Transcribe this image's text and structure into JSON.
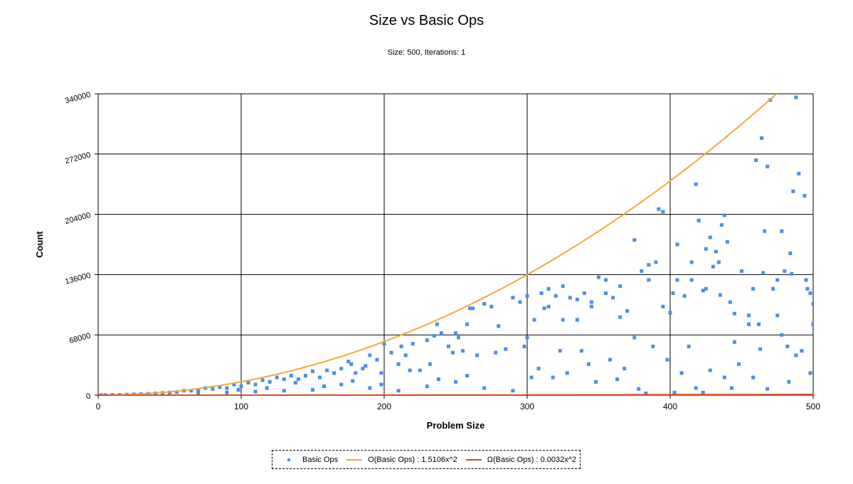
{
  "title": "Size vs Basic Ops",
  "subtitle": "Size: 500, Iterations: 1",
  "chart_data": {
    "type": "scatter",
    "title": "Size vs Basic Ops",
    "subtitle": "Size: 500, Iterations: 1",
    "xlabel": "Problem Size",
    "ylabel": "Count",
    "xlim": [
      0,
      500
    ],
    "ylim": [
      0,
      340000
    ],
    "xticks": [
      "0",
      "100",
      "200",
      "300",
      "400",
      "500"
    ],
    "yticks": [
      "0",
      "68000",
      "136000",
      "204000",
      "272000",
      "340000"
    ],
    "grid": true,
    "legend_position": "bottom-center",
    "series": [
      {
        "name": "Basic Ops",
        "kind": "points",
        "color": "#4a8fe7",
        "points": [
          [
            300,
            112000
          ],
          [
            310,
            115000
          ],
          [
            312,
            98000
          ],
          [
            315,
            100000
          ],
          [
            320,
            112000
          ],
          [
            325,
            85000
          ],
          [
            330,
            110000
          ],
          [
            335,
            108000
          ],
          [
            340,
            115000
          ],
          [
            345,
            105000
          ],
          [
            350,
            133000
          ],
          [
            355,
            130000
          ],
          [
            360,
            110000
          ],
          [
            365,
            88000
          ],
          [
            370,
            95000
          ],
          [
            375,
            65000
          ],
          [
            380,
            140000
          ],
          [
            385,
            130000
          ],
          [
            390,
            150000
          ],
          [
            392,
            210000
          ],
          [
            395,
            207000
          ],
          [
            400,
            93000
          ],
          [
            402,
            115000
          ],
          [
            405,
            170000
          ],
          [
            410,
            112000
          ],
          [
            413,
            55000
          ],
          [
            415,
            150000
          ],
          [
            418,
            238000
          ],
          [
            420,
            197000
          ],
          [
            423,
            118000
          ],
          [
            425,
            165000
          ],
          [
            428,
            178000
          ],
          [
            430,
            145000
          ],
          [
            432,
            162000
          ],
          [
            434,
            150000
          ],
          [
            436,
            192000
          ],
          [
            438,
            203000
          ],
          [
            440,
            173000
          ],
          [
            442,
            105000
          ],
          [
            445,
            60000
          ],
          [
            450,
            140000
          ],
          [
            455,
            90000
          ],
          [
            458,
            120000
          ],
          [
            460,
            265000
          ],
          [
            462,
            80000
          ],
          [
            464,
            290000
          ],
          [
            466,
            185000
          ],
          [
            468,
            258000
          ],
          [
            470,
            333000
          ],
          [
            472,
            120000
          ],
          [
            475,
            130000
          ],
          [
            478,
            185000
          ],
          [
            480,
            140000
          ],
          [
            482,
            55000
          ],
          [
            484,
            160000
          ],
          [
            486,
            230000
          ],
          [
            488,
            336000
          ],
          [
            490,
            250000
          ],
          [
            492,
            50000
          ],
          [
            494,
            225000
          ],
          [
            496,
            120000
          ],
          [
            498,
            115000
          ],
          [
            500,
            103000
          ],
          [
            500,
            80000
          ],
          [
            495,
            130000
          ],
          [
            485,
            137000
          ],
          [
            475,
            90000
          ],
          [
            465,
            138000
          ],
          [
            455,
            80000
          ],
          [
            445,
            92000
          ],
          [
            435,
            113000
          ],
          [
            425,
            120000
          ],
          [
            415,
            130000
          ],
          [
            405,
            130000
          ],
          [
            395,
            100000
          ],
          [
            385,
            147000
          ],
          [
            375,
            175000
          ],
          [
            365,
            123000
          ],
          [
            355,
            115000
          ],
          [
            345,
            100000
          ],
          [
            335,
            85000
          ],
          [
            325,
            123000
          ],
          [
            315,
            120000
          ],
          [
            305,
            85000
          ],
          [
            300,
            65000
          ],
          [
            298,
            55000
          ],
          [
            295,
            105000
          ],
          [
            290,
            110000
          ],
          [
            285,
            52000
          ],
          [
            280,
            78000
          ],
          [
            275,
            100000
          ],
          [
            270,
            103000
          ],
          [
            265,
            45000
          ],
          [
            262,
            98000
          ],
          [
            260,
            98000
          ],
          [
            258,
            80000
          ],
          [
            255,
            50000
          ],
          [
            252,
            65000
          ],
          [
            250,
            70000
          ],
          [
            248,
            48000
          ],
          [
            245,
            55000
          ],
          [
            240,
            70000
          ],
          [
            237,
            80000
          ],
          [
            235,
            67000
          ],
          [
            232,
            35000
          ],
          [
            230,
            62000
          ],
          [
            225,
            28000
          ],
          [
            220,
            58000
          ],
          [
            215,
            45000
          ],
          [
            212,
            55000
          ],
          [
            210,
            35000
          ],
          [
            205,
            48000
          ],
          [
            200,
            58000
          ],
          [
            198,
            25000
          ],
          [
            195,
            40000
          ],
          [
            190,
            45000
          ],
          [
            187,
            33000
          ],
          [
            185,
            30000
          ],
          [
            180,
            25000
          ],
          [
            177,
            35000
          ],
          [
            175,
            38000
          ],
          [
            170,
            30000
          ],
          [
            165,
            25000
          ],
          [
            160,
            28000
          ],
          [
            155,
            20000
          ],
          [
            150,
            27000
          ],
          [
            145,
            22000
          ],
          [
            140,
            18000
          ],
          [
            135,
            22000
          ],
          [
            130,
            18000
          ],
          [
            125,
            20000
          ],
          [
            120,
            15000
          ],
          [
            115,
            17000
          ],
          [
            110,
            12000
          ],
          [
            105,
            14000
          ],
          [
            100,
            10000
          ],
          [
            95,
            12000
          ],
          [
            90,
            8000
          ],
          [
            85,
            9000
          ],
          [
            80,
            7000
          ],
          [
            75,
            8000
          ],
          [
            70,
            6000
          ],
          [
            65,
            5000
          ],
          [
            60,
            5000
          ],
          [
            55,
            3500
          ],
          [
            50,
            3000
          ],
          [
            45,
            2500
          ],
          [
            40,
            2000
          ],
          [
            35,
            1500
          ],
          [
            30,
            1200
          ],
          [
            25,
            900
          ],
          [
            20,
            600
          ],
          [
            15,
            400
          ],
          [
            10,
            200
          ],
          [
            5,
            80
          ],
          [
            2,
            20
          ],
          [
            308,
            30000
          ],
          [
            318,
            20000
          ],
          [
            328,
            25000
          ],
          [
            338,
            50000
          ],
          [
            348,
            15000
          ],
          [
            358,
            40000
          ],
          [
            368,
            30000
          ],
          [
            378,
            7000
          ],
          [
            388,
            55000
          ],
          [
            398,
            40000
          ],
          [
            408,
            25000
          ],
          [
            418,
            8000
          ],
          [
            428,
            28000
          ],
          [
            438,
            20000
          ],
          [
            448,
            35000
          ],
          [
            458,
            20000
          ],
          [
            468,
            7000
          ],
          [
            478,
            68000
          ],
          [
            488,
            45000
          ],
          [
            498,
            25000
          ],
          [
            303,
            20000
          ],
          [
            323,
            50000
          ],
          [
            343,
            35000
          ],
          [
            363,
            18000
          ],
          [
            383,
            2000
          ],
          [
            403,
            3000
          ],
          [
            423,
            3000
          ],
          [
            443,
            8000
          ],
          [
            463,
            52000
          ],
          [
            483,
            15000
          ],
          [
            290,
            5000
          ],
          [
            270,
            8000
          ],
          [
            250,
            15000
          ],
          [
            230,
            10000
          ],
          [
            210,
            5000
          ],
          [
            190,
            8000
          ],
          [
            170,
            12000
          ],
          [
            150,
            6000
          ],
          [
            130,
            5000
          ],
          [
            110,
            4000
          ],
          [
            90,
            3000
          ],
          [
            70,
            2500
          ],
          [
            278,
            48000
          ],
          [
            258,
            22000
          ],
          [
            238,
            18000
          ],
          [
            218,
            28000
          ],
          [
            198,
            12000
          ],
          [
            178,
            16000
          ],
          [
            158,
            10000
          ],
          [
            138,
            14000
          ],
          [
            118,
            8000
          ],
          [
            98,
            6000
          ]
        ]
      },
      {
        "name": "O(Basic Ops) : 1.5106x^2",
        "kind": "curve",
        "color": "#f3a93b",
        "coefficient": 1.5106
      },
      {
        "name": "Ω(Basic Ops) : 0.0032x^2",
        "kind": "curve",
        "color": "#d9481e",
        "coefficient": 0.0032
      }
    ]
  }
}
